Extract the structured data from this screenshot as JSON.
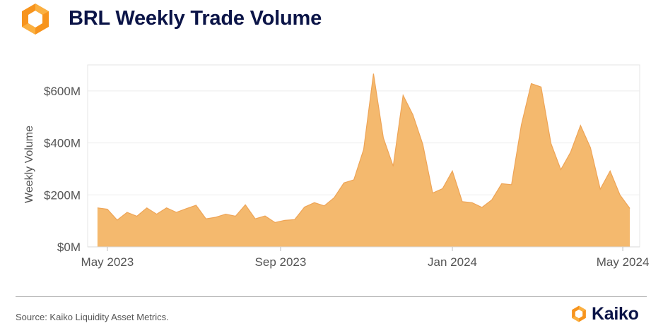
{
  "header": {
    "title": "BRL Weekly Trade Volume"
  },
  "footer": {
    "source": "Source: Kaiko Liquidity Asset Metrics.",
    "brand": "Kaiko"
  },
  "colors": {
    "area_fill": "#f4b96e",
    "area_line": "#eea456",
    "title": "#0b1447",
    "logo_primary": "#f7941d",
    "logo_secondary": "#fbb040"
  },
  "icons": {
    "logo": "kaiko-hexagon-logo-icon"
  },
  "chart_data": {
    "type": "area",
    "title": "BRL Weekly Trade Volume",
    "xlabel": "",
    "ylabel": "Weekly Volume",
    "x_tick_labels": [
      "May 2023",
      "Sep 2023",
      "Jan 2024",
      "May 2024"
    ],
    "y_tick_labels": [
      "$0M",
      "$200M",
      "$400M",
      "$600M"
    ],
    "y_ticks": [
      0,
      200,
      400,
      600
    ],
    "ylim": [
      0,
      700
    ],
    "xlim": [
      "2023-04-17",
      "2024-05-13"
    ],
    "grid": true,
    "legend": "none",
    "series": [
      {
        "x": [
          "2023-04-24",
          "2023-05-01",
          "2023-05-08",
          "2023-05-15",
          "2023-05-22",
          "2023-05-29",
          "2023-06-05",
          "2023-06-12",
          "2023-06-19",
          "2023-06-26",
          "2023-07-03",
          "2023-07-10",
          "2023-07-17",
          "2023-07-24",
          "2023-07-31",
          "2023-08-07",
          "2023-08-14",
          "2023-08-21",
          "2023-08-28",
          "2023-09-04",
          "2023-09-11",
          "2023-09-18",
          "2023-09-25",
          "2023-10-02",
          "2023-10-09",
          "2023-10-16",
          "2023-10-23",
          "2023-10-30",
          "2023-11-06",
          "2023-11-13",
          "2023-11-20",
          "2023-11-27",
          "2023-12-04",
          "2023-12-11",
          "2023-12-18",
          "2023-12-25",
          "2024-01-01",
          "2024-01-08",
          "2024-01-15",
          "2024-01-22",
          "2024-01-29",
          "2024-02-05",
          "2024-02-12",
          "2024-02-19",
          "2024-02-26",
          "2024-03-04",
          "2024-03-11",
          "2024-03-18",
          "2024-03-25",
          "2024-04-01",
          "2024-04-08",
          "2024-04-15",
          "2024-04-22",
          "2024-04-29",
          "2024-05-06"
        ],
        "values": [
          150,
          145,
          103,
          133,
          118,
          150,
          126,
          150,
          133,
          147,
          160,
          108,
          114,
          126,
          118,
          162,
          108,
          119,
          94,
          102,
          105,
          153,
          170,
          158,
          189,
          246,
          258,
          375,
          666,
          419,
          310,
          583,
          508,
          394,
          207,
          224,
          292,
          174,
          170,
          152,
          181,
          243,
          239,
          469,
          628,
          615,
          398,
          297,
          365,
          467,
          382,
          222,
          292,
          200,
          148
        ]
      }
    ]
  }
}
